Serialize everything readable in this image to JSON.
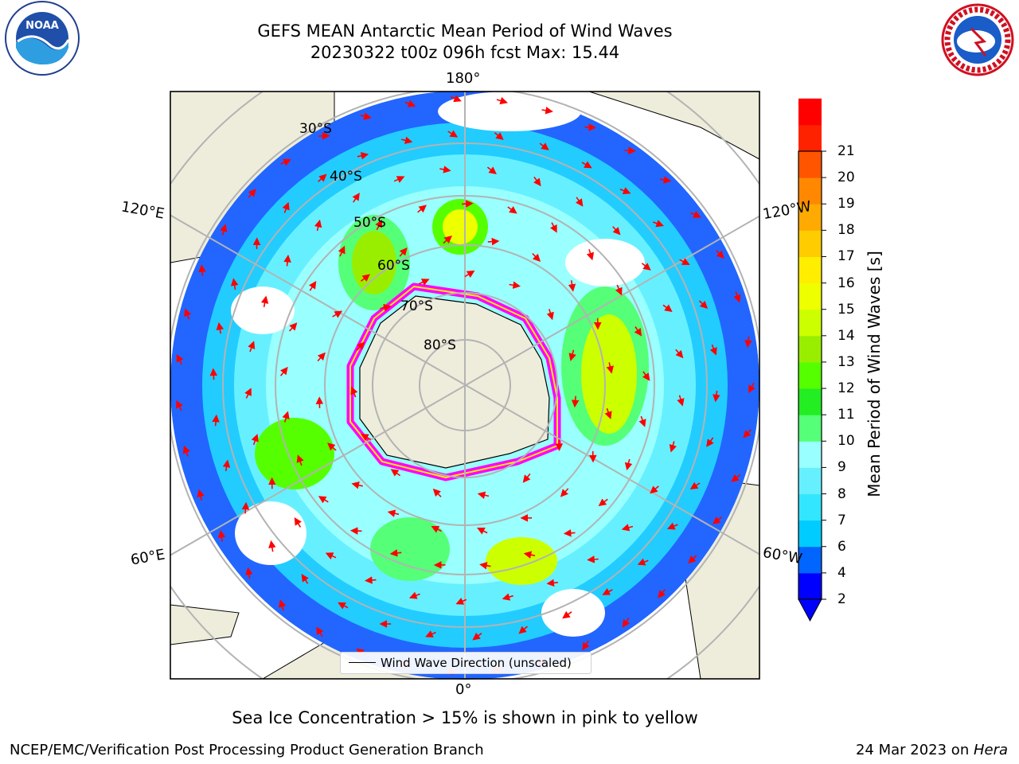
{
  "header": {
    "title_line1": "GEFS MEAN Antarctic Mean Period of Wind Waves",
    "title_line2": "20230322 t00z 096h fcst   Max: 15.44"
  },
  "logos": {
    "left": {
      "name": "noaa-logo",
      "text": "NOAA",
      "ring_text": "NATIONAL OCEANIC AND ATMOSPHERIC ADMINISTRATION · U.S. DEPARTMENT OF COMMERCE"
    },
    "right": {
      "name": "nws-logo",
      "ring_text": "NATIONAL WEATHER SERVICE"
    }
  },
  "map": {
    "projection": "south-polar-stereographic",
    "longitude_labels": {
      "top": "180°",
      "bottom": "0°",
      "upper_left": "120°E",
      "upper_right": "120°W",
      "lower_left": "60°E",
      "lower_right": "60°W"
    },
    "latitude_labels": [
      "30°S",
      "40°S",
      "50°S",
      "60°S",
      "70°S",
      "80°S"
    ],
    "legend_label": "Wind Wave Direction (unscaled)",
    "land_color": "#eeeddc",
    "ocean_no_data_color": "#ffffff",
    "arrow_color": "#ff0000",
    "sea_ice_colors": [
      "#ff00ff",
      "#ffff00"
    ]
  },
  "colorbar": {
    "label": "Mean Period of Wind Waves [s]",
    "ticks": [
      "2",
      "4",
      "6",
      "7",
      "8",
      "9",
      "10",
      "11",
      "12",
      "13",
      "14",
      "15",
      "16",
      "17",
      "18",
      "19",
      "20",
      "21"
    ],
    "colors": [
      "#0000ff",
      "#0066ff",
      "#00ccff",
      "#33e6ff",
      "#66f0ff",
      "#99ffff",
      "#55ff77",
      "#22ee22",
      "#55ff00",
      "#99ee00",
      "#ccff00",
      "#eeff00",
      "#ffee00",
      "#ffcc00",
      "#ffaa00",
      "#ff8800",
      "#ff5500",
      "#ff2200",
      "#ff0000"
    ],
    "extend_min_color": "#0000ff"
  },
  "subtitle": "Sea Ice Concentration > 15% is shown in pink to yellow",
  "footer": {
    "left": "NCEP/EMC/Verification Post Processing Product Generation Branch",
    "right_date": "24 Mar 2023 on ",
    "right_host": "Hera"
  }
}
